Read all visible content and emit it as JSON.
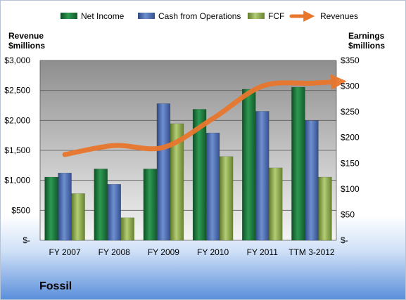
{
  "chart_data": {
    "type": "bar",
    "title": "",
    "company": "Fossil",
    "categories": [
      "FY 2007",
      "FY 2008",
      "FY 2009",
      "FY 2010",
      "FY 2011",
      "TTM 3-2012"
    ],
    "left_axis": {
      "label_line1": "Revenue",
      "label_line2": "$millions",
      "range": [
        0,
        3000
      ],
      "ticks": [
        0,
        500,
        1000,
        1500,
        2000,
        2500,
        3000
      ],
      "tick_labels": [
        "$-",
        "$500",
        "$1,000",
        "$1,500",
        "$2,000",
        "$2,500",
        "$3,000"
      ]
    },
    "right_axis": {
      "label_line1": "Earnings",
      "label_line2": "$millions",
      "range": [
        0,
        350
      ],
      "ticks": [
        0,
        50,
        100,
        150,
        200,
        250,
        300,
        350
      ],
      "tick_labels": [
        "$-",
        "$50",
        "$100",
        "$150",
        "$200",
        "$250",
        "$300",
        "$350"
      ]
    },
    "series": [
      {
        "name": "Net Income",
        "axis": "right",
        "kind": "bar",
        "color": "#1f7a3f",
        "values": [
          123,
          139,
          139,
          255,
          294,
          298
        ]
      },
      {
        "name": "Cash from Operations",
        "axis": "right",
        "kind": "bar",
        "color": "#4f6fb3",
        "values": [
          131,
          109,
          266,
          209,
          251,
          233
        ]
      },
      {
        "name": "FCF",
        "axis": "right",
        "kind": "bar",
        "color": "#8fad4e",
        "values": [
          91,
          44,
          227,
          163,
          141,
          123
        ]
      },
      {
        "name": "Revenues",
        "axis": "left",
        "kind": "line",
        "color": "#e8772d",
        "values": [
          1430,
          1580,
          1550,
          2030,
          2570,
          2620
        ]
      }
    ],
    "grid": true,
    "legend": "top"
  }
}
